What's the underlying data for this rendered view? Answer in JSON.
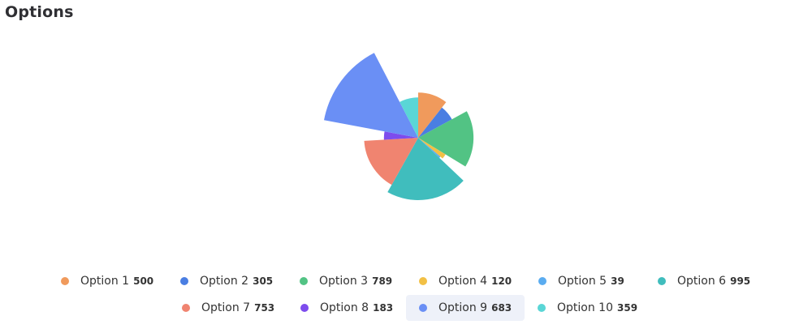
{
  "title": "Options",
  "chart_data": {
    "type": "pie",
    "variant": "nightingale-rose-with-highlight",
    "highlighted": "Option 9",
    "slices": [
      {
        "name": "Option 1",
        "value": 500,
        "value_label": "500",
        "color": "#f09a5c"
      },
      {
        "name": "Option 2",
        "value": 305,
        "value_label": "305",
        "color": "#4a7ee2"
      },
      {
        "name": "Option 3",
        "value": 789,
        "value_label": "789",
        "color": "#52c384"
      },
      {
        "name": "Option 4",
        "value": 120,
        "value_label": "120",
        "color": "#f2c045"
      },
      {
        "name": "Option 5",
        "value": 39,
        "value_label": "39",
        "color": "#5aacf0"
      },
      {
        "name": "Option 6",
        "value": 995,
        "value_label": "995",
        "color": "#40bdbd"
      },
      {
        "name": "Option 7",
        "value": 753,
        "value_label": "753",
        "color": "#f08470"
      },
      {
        "name": "Option 8",
        "value": 183,
        "value_label": "183",
        "color": "#7d4ced"
      },
      {
        "name": "Option 9",
        "value": 683,
        "value_label": "683",
        "color": "#6a8ff5"
      },
      {
        "name": "Option 10",
        "value": 359,
        "value_label": "359",
        "color": "#5ad6d6"
      }
    ]
  }
}
